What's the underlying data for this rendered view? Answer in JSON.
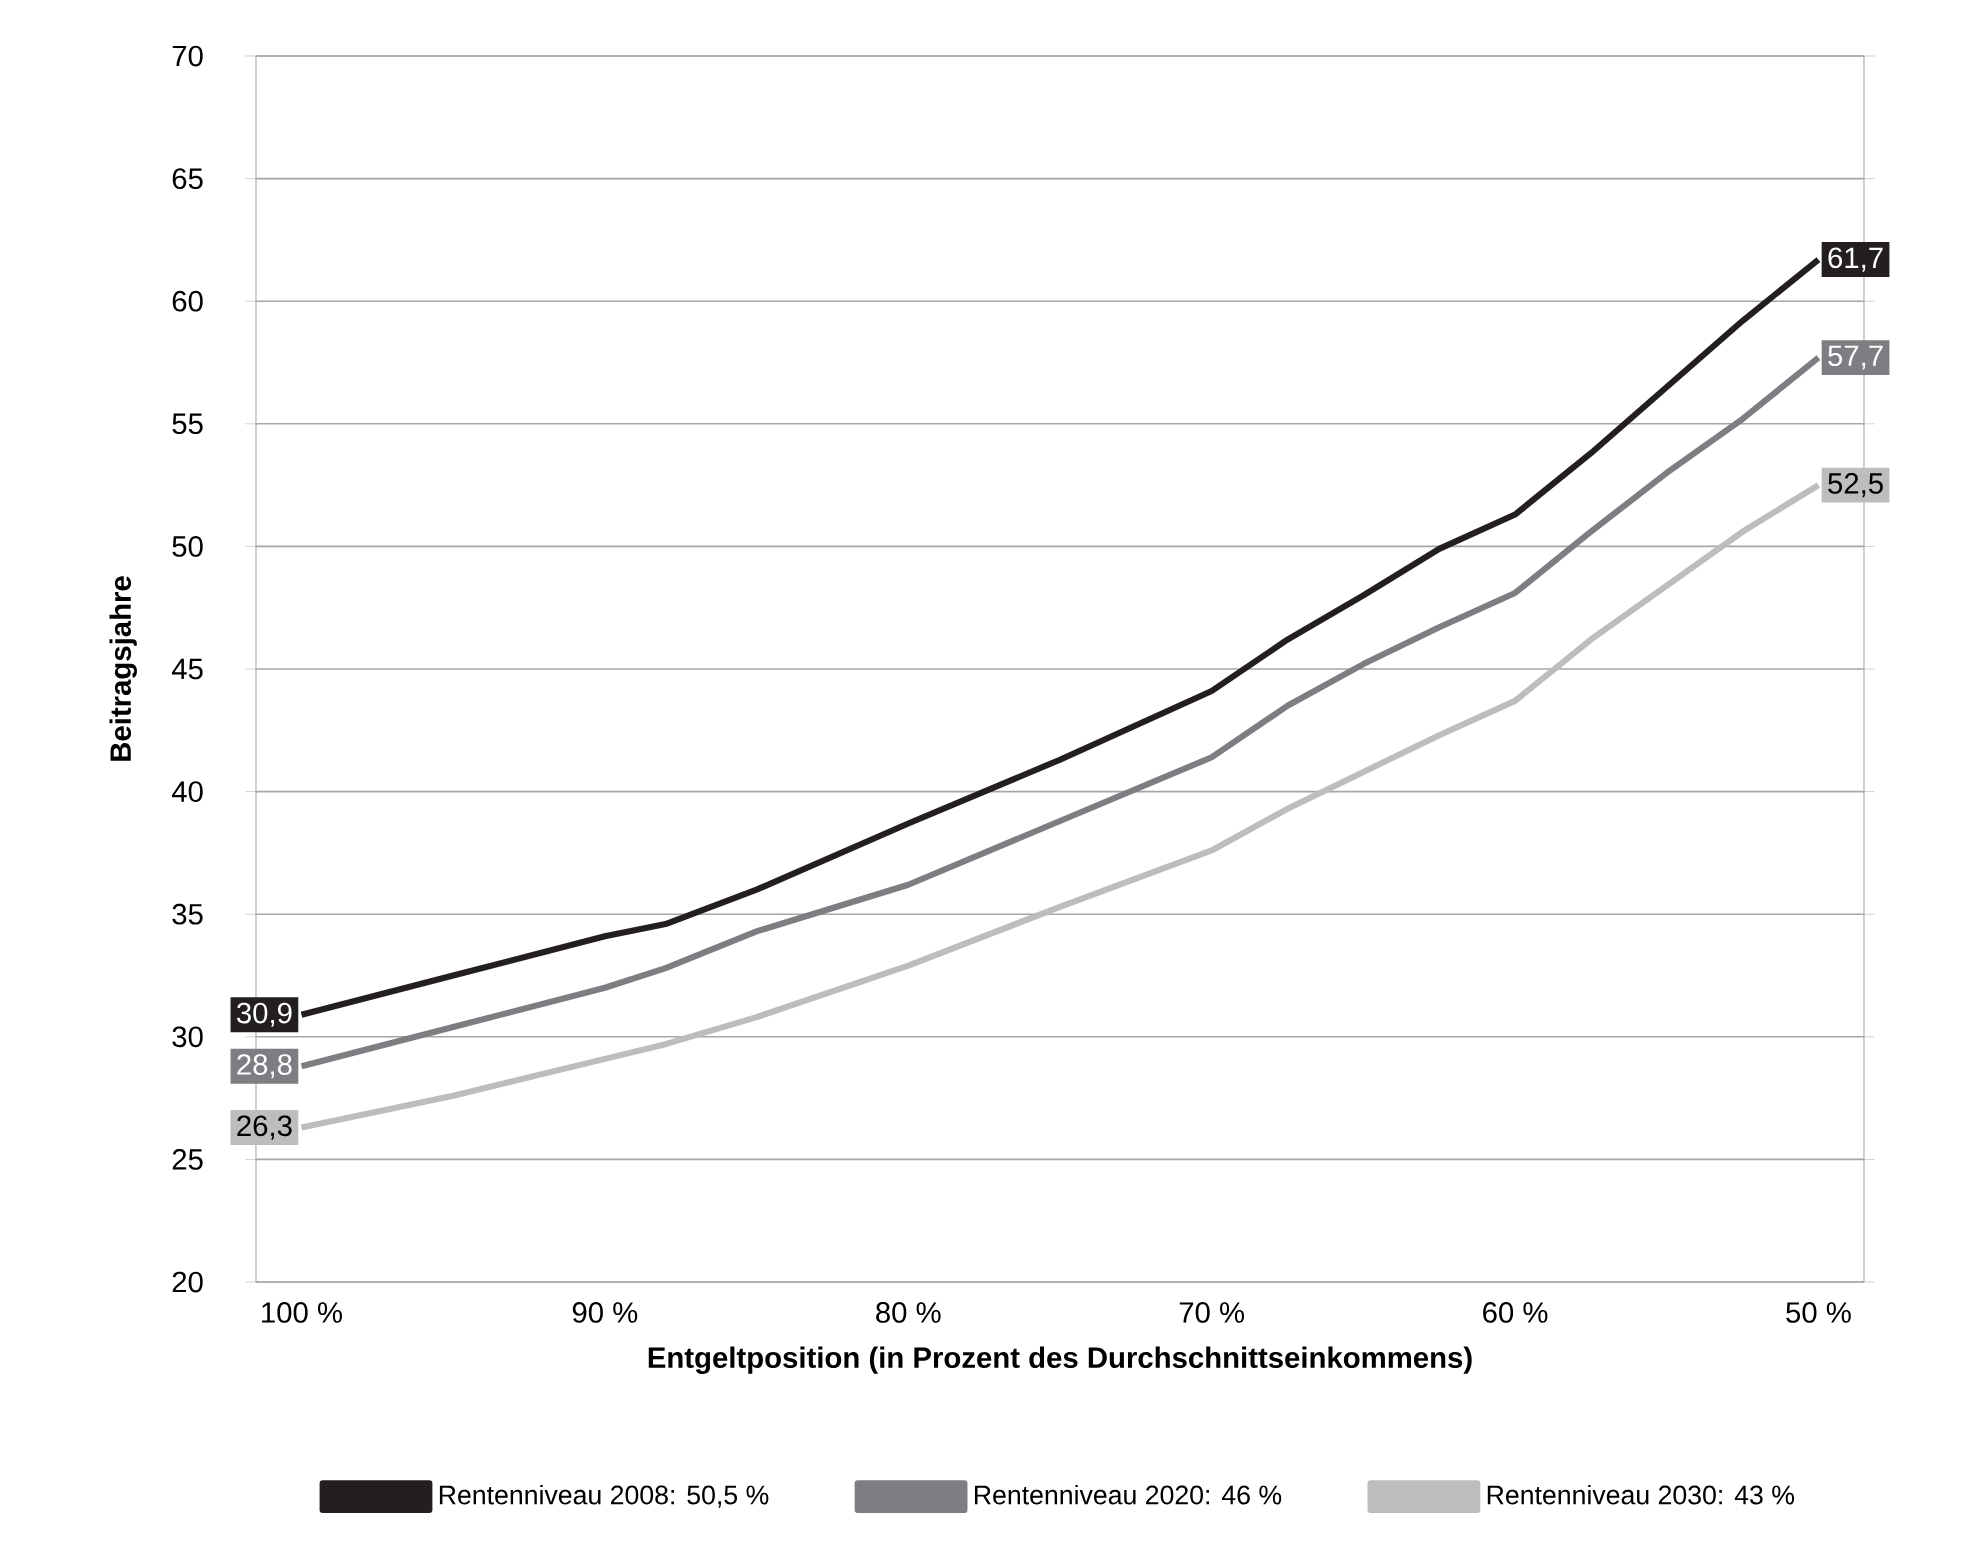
{
  "chart_data": {
    "type": "line",
    "xlabel": "Entgeltposition (in Prozent des Durchschnittseinkommens)",
    "ylabel": "Beitragsjahre",
    "x": [
      100,
      95,
      90,
      88,
      85,
      80,
      75,
      70,
      67.5,
      65,
      62.5,
      60,
      57.5,
      55,
      52.5,
      50
    ],
    "xlim": [
      101.5,
      48.5
    ],
    "xticks": [
      {
        "value": 100,
        "label": "100 %"
      },
      {
        "value": 90,
        "label": "90 %"
      },
      {
        "value": 80,
        "label": "80 %"
      },
      {
        "value": 70,
        "label": "70 %"
      },
      {
        "value": 60,
        "label": "60 %"
      },
      {
        "value": 50,
        "label": "50 %"
      }
    ],
    "ylim": [
      20,
      70
    ],
    "yticks": [
      20,
      25,
      30,
      35,
      40,
      45,
      50,
      55,
      60,
      65,
      70
    ],
    "grid": "y",
    "legend": "bottom",
    "line_style": "solid",
    "series": [
      {
        "name": "Rentenniveau 2008: 50,5 %",
        "color": "#231f20",
        "values": [
          30.9,
          32.5,
          34.1,
          34.6,
          36.0,
          38.7,
          41.3,
          44.1,
          46.2,
          48.0,
          49.9,
          51.3,
          53.8,
          56.5,
          59.2,
          61.7
        ],
        "value_labels": [
          "30,9",
          null,
          null,
          null,
          null,
          null,
          null,
          null,
          null,
          null,
          null,
          null,
          null,
          null,
          null,
          "61,7"
        ]
      },
      {
        "name": "Rentenniveau 2020: 46 %",
        "color": "#7e7e82",
        "values": [
          28.8,
          30.4,
          32.0,
          32.8,
          34.3,
          36.2,
          38.8,
          41.4,
          43.5,
          45.2,
          46.7,
          48.1,
          50.6,
          53.0,
          55.2,
          57.7
        ],
        "value_labels": [
          "28,8",
          null,
          null,
          null,
          null,
          null,
          null,
          null,
          null,
          null,
          null,
          null,
          null,
          null,
          null,
          "57,7"
        ]
      },
      {
        "name": "Rentenniveau 2030: 43 %",
        "color": "#bdbdc0",
        "values": [
          26.3,
          27.6,
          29.1,
          29.7,
          30.8,
          32.9,
          35.3,
          37.6,
          39.3,
          40.8,
          42.3,
          43.7,
          46.2,
          48.4,
          50.6,
          52.5
        ],
        "value_labels": [
          "26,3",
          null,
          null,
          null,
          null,
          null,
          null,
          null,
          null,
          null,
          null,
          null,
          null,
          null,
          null,
          "52,5"
        ]
      }
    ]
  }
}
